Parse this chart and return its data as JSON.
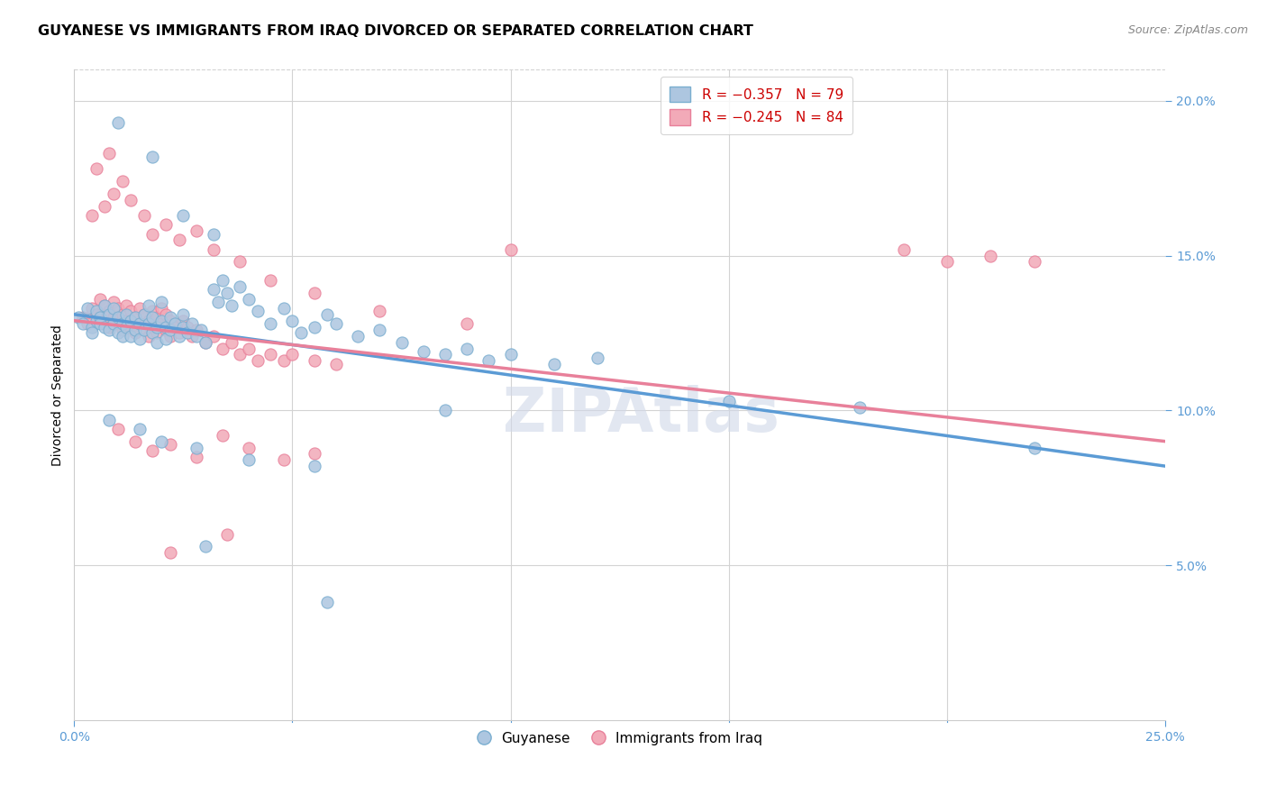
{
  "title": "GUYANESE VS IMMIGRANTS FROM IRAQ DIVORCED OR SEPARATED CORRELATION CHART",
  "source": "Source: ZipAtlas.com",
  "ylabel": "Divorced or Separated",
  "xlim": [
    0.0,
    0.25
  ],
  "ylim": [
    0.0,
    0.21
  ],
  "xticks_show": [
    0.0,
    0.25
  ],
  "xtick_minor": [
    0.05,
    0.1,
    0.15,
    0.2
  ],
  "yticks": [
    0.05,
    0.1,
    0.15,
    0.2
  ],
  "axis_color": "#5b9bd5",
  "tick_color": "#5b9bd5",
  "grid_color": "#d3d3d3",
  "blue_scatter": [
    [
      0.001,
      0.13
    ],
    [
      0.002,
      0.128
    ],
    [
      0.003,
      0.133
    ],
    [
      0.004,
      0.127
    ],
    [
      0.004,
      0.125
    ],
    [
      0.005,
      0.132
    ],
    [
      0.005,
      0.129
    ],
    [
      0.006,
      0.13
    ],
    [
      0.006,
      0.128
    ],
    [
      0.007,
      0.134
    ],
    [
      0.007,
      0.127
    ],
    [
      0.008,
      0.131
    ],
    [
      0.008,
      0.126
    ],
    [
      0.009,
      0.133
    ],
    [
      0.009,
      0.128
    ],
    [
      0.01,
      0.13
    ],
    [
      0.01,
      0.125
    ],
    [
      0.011,
      0.128
    ],
    [
      0.011,
      0.124
    ],
    [
      0.012,
      0.131
    ],
    [
      0.012,
      0.127
    ],
    [
      0.013,
      0.129
    ],
    [
      0.013,
      0.124
    ],
    [
      0.014,
      0.13
    ],
    [
      0.014,
      0.126
    ],
    [
      0.015,
      0.128
    ],
    [
      0.015,
      0.123
    ],
    [
      0.016,
      0.131
    ],
    [
      0.016,
      0.126
    ],
    [
      0.017,
      0.134
    ],
    [
      0.017,
      0.128
    ],
    [
      0.018,
      0.13
    ],
    [
      0.018,
      0.125
    ],
    [
      0.019,
      0.127
    ],
    [
      0.019,
      0.122
    ],
    [
      0.02,
      0.135
    ],
    [
      0.02,
      0.129
    ],
    [
      0.021,
      0.127
    ],
    [
      0.021,
      0.123
    ],
    [
      0.022,
      0.13
    ],
    [
      0.022,
      0.126
    ],
    [
      0.023,
      0.128
    ],
    [
      0.024,
      0.124
    ],
    [
      0.025,
      0.131
    ],
    [
      0.025,
      0.127
    ],
    [
      0.026,
      0.125
    ],
    [
      0.027,
      0.128
    ],
    [
      0.028,
      0.124
    ],
    [
      0.029,
      0.126
    ],
    [
      0.03,
      0.122
    ],
    [
      0.032,
      0.139
    ],
    [
      0.033,
      0.135
    ],
    [
      0.034,
      0.142
    ],
    [
      0.035,
      0.138
    ],
    [
      0.036,
      0.134
    ],
    [
      0.038,
      0.14
    ],
    [
      0.04,
      0.136
    ],
    [
      0.042,
      0.132
    ],
    [
      0.045,
      0.128
    ],
    [
      0.048,
      0.133
    ],
    [
      0.05,
      0.129
    ],
    [
      0.052,
      0.125
    ],
    [
      0.055,
      0.127
    ],
    [
      0.058,
      0.131
    ],
    [
      0.06,
      0.128
    ],
    [
      0.065,
      0.124
    ],
    [
      0.07,
      0.126
    ],
    [
      0.075,
      0.122
    ],
    [
      0.08,
      0.119
    ],
    [
      0.085,
      0.118
    ],
    [
      0.09,
      0.12
    ],
    [
      0.095,
      0.116
    ],
    [
      0.1,
      0.118
    ],
    [
      0.11,
      0.115
    ],
    [
      0.12,
      0.117
    ],
    [
      0.01,
      0.193
    ],
    [
      0.018,
      0.182
    ],
    [
      0.025,
      0.163
    ],
    [
      0.032,
      0.157
    ],
    [
      0.008,
      0.097
    ],
    [
      0.015,
      0.094
    ],
    [
      0.02,
      0.09
    ],
    [
      0.028,
      0.088
    ],
    [
      0.04,
      0.084
    ],
    [
      0.055,
      0.082
    ],
    [
      0.03,
      0.056
    ],
    [
      0.085,
      0.1
    ],
    [
      0.15,
      0.103
    ],
    [
      0.18,
      0.101
    ],
    [
      0.22,
      0.088
    ],
    [
      0.058,
      0.038
    ]
  ],
  "pink_scatter": [
    [
      0.002,
      0.13
    ],
    [
      0.003,
      0.128
    ],
    [
      0.004,
      0.133
    ],
    [
      0.005,
      0.131
    ],
    [
      0.006,
      0.136
    ],
    [
      0.006,
      0.129
    ],
    [
      0.007,
      0.134
    ],
    [
      0.007,
      0.128
    ],
    [
      0.008,
      0.132
    ],
    [
      0.008,
      0.127
    ],
    [
      0.009,
      0.135
    ],
    [
      0.009,
      0.13
    ],
    [
      0.01,
      0.133
    ],
    [
      0.01,
      0.128
    ],
    [
      0.011,
      0.131
    ],
    [
      0.011,
      0.126
    ],
    [
      0.012,
      0.134
    ],
    [
      0.012,
      0.129
    ],
    [
      0.013,
      0.132
    ],
    [
      0.013,
      0.127
    ],
    [
      0.014,
      0.13
    ],
    [
      0.014,
      0.125
    ],
    [
      0.015,
      0.133
    ],
    [
      0.015,
      0.128
    ],
    [
      0.016,
      0.131
    ],
    [
      0.016,
      0.126
    ],
    [
      0.017,
      0.129
    ],
    [
      0.017,
      0.124
    ],
    [
      0.018,
      0.132
    ],
    [
      0.018,
      0.127
    ],
    [
      0.019,
      0.13
    ],
    [
      0.019,
      0.125
    ],
    [
      0.02,
      0.133
    ],
    [
      0.02,
      0.128
    ],
    [
      0.021,
      0.131
    ],
    [
      0.021,
      0.126
    ],
    [
      0.022,
      0.129
    ],
    [
      0.022,
      0.124
    ],
    [
      0.023,
      0.127
    ],
    [
      0.024,
      0.125
    ],
    [
      0.025,
      0.129
    ],
    [
      0.026,
      0.127
    ],
    [
      0.027,
      0.124
    ],
    [
      0.028,
      0.126
    ],
    [
      0.03,
      0.122
    ],
    [
      0.032,
      0.124
    ],
    [
      0.034,
      0.12
    ],
    [
      0.036,
      0.122
    ],
    [
      0.038,
      0.118
    ],
    [
      0.04,
      0.12
    ],
    [
      0.042,
      0.116
    ],
    [
      0.045,
      0.118
    ],
    [
      0.048,
      0.116
    ],
    [
      0.05,
      0.118
    ],
    [
      0.055,
      0.116
    ],
    [
      0.06,
      0.115
    ],
    [
      0.004,
      0.163
    ],
    [
      0.007,
      0.166
    ],
    [
      0.009,
      0.17
    ],
    [
      0.011,
      0.174
    ],
    [
      0.013,
      0.168
    ],
    [
      0.016,
      0.163
    ],
    [
      0.018,
      0.157
    ],
    [
      0.021,
      0.16
    ],
    [
      0.024,
      0.155
    ],
    [
      0.028,
      0.158
    ],
    [
      0.032,
      0.152
    ],
    [
      0.038,
      0.148
    ],
    [
      0.045,
      0.142
    ],
    [
      0.055,
      0.138
    ],
    [
      0.07,
      0.132
    ],
    [
      0.09,
      0.128
    ],
    [
      0.005,
      0.178
    ],
    [
      0.008,
      0.183
    ],
    [
      0.01,
      0.094
    ],
    [
      0.014,
      0.09
    ],
    [
      0.018,
      0.087
    ],
    [
      0.022,
      0.089
    ],
    [
      0.028,
      0.085
    ],
    [
      0.034,
      0.092
    ],
    [
      0.04,
      0.088
    ],
    [
      0.048,
      0.084
    ],
    [
      0.055,
      0.086
    ],
    [
      0.022,
      0.054
    ],
    [
      0.035,
      0.06
    ],
    [
      0.1,
      0.152
    ],
    [
      0.19,
      0.152
    ],
    [
      0.2,
      0.148
    ],
    [
      0.21,
      0.15
    ],
    [
      0.22,
      0.148
    ]
  ],
  "blue_line": [
    [
      0.0,
      0.131
    ],
    [
      0.25,
      0.082
    ]
  ],
  "pink_line": [
    [
      0.0,
      0.129
    ],
    [
      0.25,
      0.09
    ]
  ],
  "blue_color": "#adc6e0",
  "pink_color": "#f2aab8",
  "blue_edge": "#7aaed0",
  "pink_edge": "#e8809a",
  "blue_line_color": "#5b9bd5",
  "pink_line_color": "#e8809a",
  "marker_size": 90,
  "background_color": "#ffffff",
  "title_fontsize": 11.5,
  "axis_label_fontsize": 10,
  "tick_fontsize": 10
}
